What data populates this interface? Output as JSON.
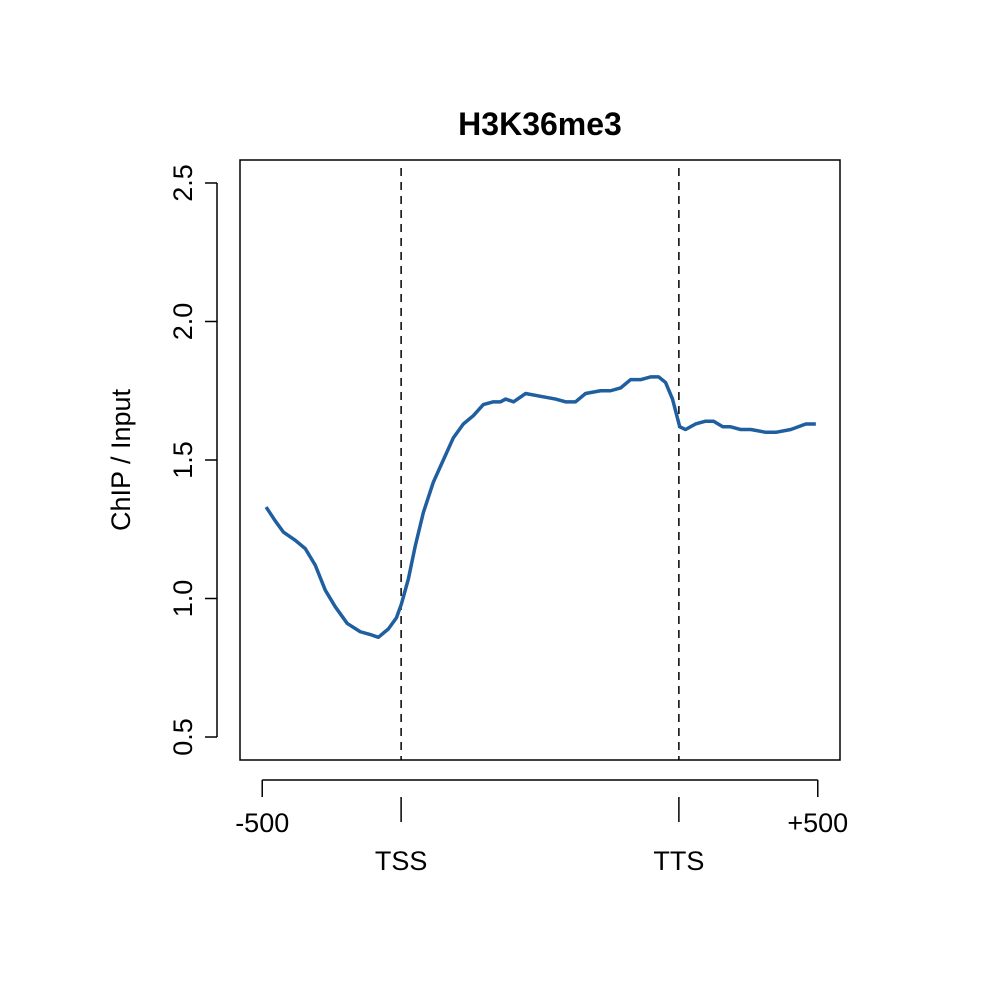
{
  "chart_data": {
    "type": "line",
    "title": "H3K36me3",
    "ylabel": "ChIP / Input",
    "x": [
      14,
      47,
      76,
      119,
      155,
      191,
      227,
      263,
      306,
      353,
      389,
      418,
      454,
      483,
      501,
      526,
      551,
      580,
      616,
      652,
      688,
      724,
      760,
      796,
      832,
      858,
      876,
      905,
      948,
      1002,
      1056,
      1092,
      1128,
      1164,
      1218,
      1254,
      1290,
      1326,
      1362,
      1398,
      1427,
      1452,
      1477,
      1503,
      1524,
      1560,
      1596,
      1625,
      1658,
      1686,
      1723,
      1759,
      1813,
      1849,
      1903,
      1957,
      1993
    ],
    "series": [
      {
        "name": "H3K36me3",
        "color": "#1f5fa0",
        "values": [
          1.33,
          1.28,
          1.24,
          1.21,
          1.18,
          1.12,
          1.03,
          0.97,
          0.91,
          0.88,
          0.87,
          0.86,
          0.89,
          0.93,
          0.98,
          1.07,
          1.19,
          1.31,
          1.42,
          1.5,
          1.58,
          1.63,
          1.66,
          1.7,
          1.71,
          1.71,
          1.72,
          1.71,
          1.74,
          1.73,
          1.72,
          1.71,
          1.71,
          1.74,
          1.75,
          1.75,
          1.76,
          1.79,
          1.79,
          1.8,
          1.8,
          1.78,
          1.72,
          1.62,
          1.61,
          1.63,
          1.64,
          1.64,
          1.62,
          1.62,
          1.61,
          1.61,
          1.6,
          1.6,
          1.61,
          1.63,
          1.63
        ]
      }
    ],
    "xlim": [
      -80,
      2080
    ],
    "xticks": [
      {
        "value": 0,
        "label": "-500"
      },
      {
        "value": 500,
        "label": "TSS"
      },
      {
        "value": 1500,
        "label": "TTS"
      },
      {
        "value": 2000,
        "label": "+500"
      }
    ],
    "vlines": [
      500,
      1500
    ],
    "ylim": [
      0.417,
      2.583
    ],
    "yticks": [
      0.5,
      {
        "value": 1,
        "label": "1.0"
      },
      1.5,
      {
        "value": 2,
        "label": "2.0"
      },
      2.5
    ]
  }
}
